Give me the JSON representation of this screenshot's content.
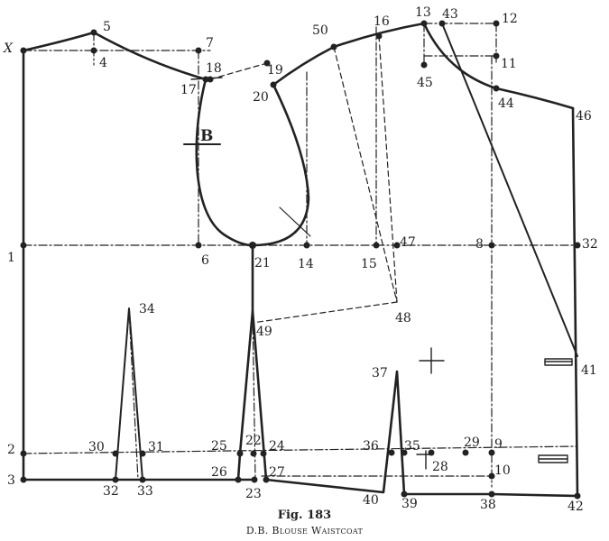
{
  "figure": {
    "number_label": "Fig. 183",
    "title": "D.B. Blouse Waistcoat"
  },
  "colors": {
    "ink": "#222222",
    "paper": "#ffffff"
  },
  "section_marker": "B",
  "point_labels": {
    "x": "X",
    "p1": "1",
    "p2": "2",
    "p3": "3",
    "p4": "4",
    "p5": "5",
    "p6": "6",
    "p7": "7",
    "p8": "8",
    "p9": "9",
    "p10": "10",
    "p11": "11",
    "p12": "12",
    "p13": "13",
    "p14": "14",
    "p15": "15",
    "p16": "16",
    "p17": "17",
    "p18": "18",
    "p19": "19",
    "p20": "20",
    "p21": "21",
    "p22": "22",
    "p23": "23",
    "p24": "24",
    "p25": "25",
    "p26": "26",
    "p27": "27",
    "p28": "28",
    "p29": "29",
    "p30": "30",
    "p31": "31",
    "p32": "32",
    "p33": "33",
    "p34": "34",
    "p35": "35",
    "p36": "36",
    "p37": "37",
    "p38": "38",
    "p39": "39",
    "p40": "40",
    "p41": "41",
    "p42": "42",
    "p43": "43",
    "p44": "44",
    "p45": "45",
    "p46": "46",
    "p47": "47",
    "p48": "48",
    "p49": "49",
    "p50": "50"
  }
}
